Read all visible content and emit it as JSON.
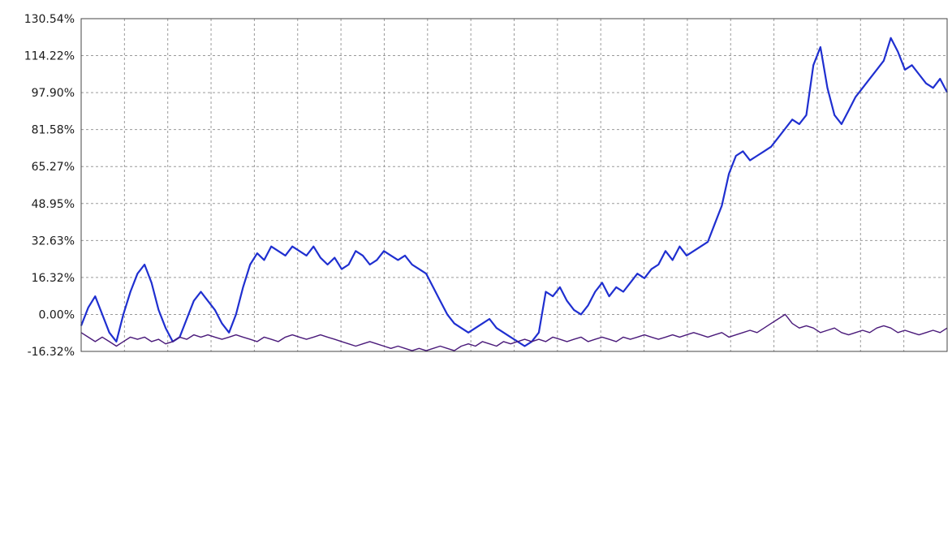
{
  "chart_data": {
    "type": "line",
    "title": "",
    "xlabel": "",
    "ylabel": "",
    "y_ticks": [
      "130.54%",
      "114.22%",
      "97.90%",
      "81.58%",
      "65.27%",
      "48.95%",
      "32.63%",
      "16.32%",
      "0.00%",
      "-16.32%"
    ],
    "ylim": [
      -16.32,
      130.54
    ],
    "grid": true,
    "series": [
      {
        "color": "#1f2fd0",
        "values": [
          -5,
          3,
          8,
          0,
          -8,
          -12,
          0,
          10,
          18,
          22,
          14,
          2,
          -6,
          -12,
          -10,
          -2,
          6,
          10,
          6,
          2,
          -4,
          -8,
          0,
          12,
          22,
          27,
          24,
          30,
          28,
          26,
          30,
          28,
          26,
          30,
          25,
          22,
          25,
          20,
          22,
          28,
          26,
          22,
          24,
          28,
          26,
          24,
          26,
          22,
          20,
          18,
          12,
          6,
          0,
          -4,
          -6,
          -8,
          -6,
          -4,
          -2,
          -6,
          -8,
          -10,
          -12,
          -14,
          -12,
          -8,
          10,
          8,
          12,
          6,
          2,
          0,
          4,
          10,
          14,
          8,
          12,
          10,
          14,
          18,
          16,
          20,
          22,
          28,
          24,
          30,
          26,
          28,
          30,
          32,
          40,
          48,
          62,
          70,
          72,
          68,
          70,
          72,
          74,
          78,
          82,
          86,
          84,
          88,
          110,
          118,
          100,
          88,
          84,
          90,
          96,
          100,
          104,
          108,
          112,
          122,
          116,
          108,
          110,
          106,
          102,
          100,
          104,
          98
        ]
      },
      {
        "color": "#4a1a7a",
        "values": [
          -8,
          -10,
          -12,
          -10,
          -12,
          -14,
          -12,
          -10,
          -11,
          -10,
          -12,
          -11,
          -13,
          -12,
          -10,
          -11,
          -9,
          -10,
          -9,
          -10,
          -11,
          -10,
          -9,
          -10,
          -11,
          -12,
          -10,
          -11,
          -12,
          -10,
          -9,
          -10,
          -11,
          -10,
          -9,
          -10,
          -11,
          -12,
          -13,
          -14,
          -13,
          -12,
          -13,
          -14,
          -15,
          -14,
          -15,
          -16,
          -15,
          -16,
          -15,
          -14,
          -15,
          -16,
          -14,
          -13,
          -14,
          -12,
          -13,
          -14,
          -12,
          -13,
          -12,
          -11,
          -12,
          -11,
          -12,
          -10,
          -11,
          -12,
          -11,
          -10,
          -12,
          -11,
          -10,
          -11,
          -12,
          -10,
          -11,
          -10,
          -9,
          -10,
          -11,
          -10,
          -9,
          -10,
          -9,
          -8,
          -9,
          -10,
          -9,
          -8,
          -10,
          -9,
          -8,
          -7,
          -8,
          -6,
          -4,
          -2,
          0,
          -4,
          -6,
          -5,
          -6,
          -8,
          -7,
          -6,
          -8,
          -9,
          -8,
          -7,
          -8,
          -6,
          -5,
          -6,
          -8,
          -7,
          -8,
          -9,
          -8,
          -7,
          -8,
          -6
        ]
      }
    ]
  }
}
